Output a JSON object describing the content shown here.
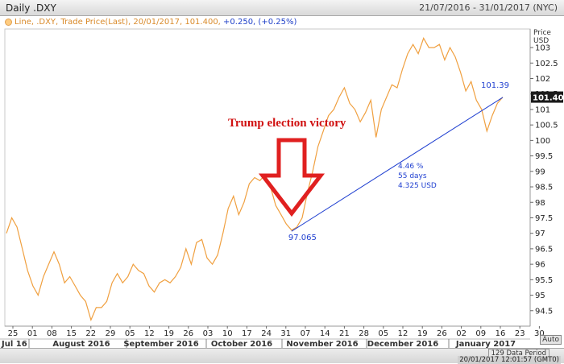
{
  "window": {
    "title": "Daily .DXY",
    "date_range": "21/07/2016 - 31/01/2017 (NYC)"
  },
  "legend": {
    "text": "Line, .DXY, Trade Price(Last), 20/01/2017, 101.400, ",
    "change": "+0.250, (+0.25%)",
    "color": "#f0a040"
  },
  "footer": {
    "period": "129 Data Period",
    "timestamp": "20/01/2017 12:01:57 (GMT0)",
    "auto_button": "Auto"
  },
  "colors": {
    "line": "#f0a040",
    "trend": "#1f3fd0",
    "arrow": "#e02020",
    "annotation_text": "#d01010",
    "price_box": "#1a1a1a"
  },
  "chart_data": {
    "type": "line",
    "title": "Daily .DXY",
    "ylabel": "Price USD",
    "ylim": [
      94.0,
      103.6
    ],
    "y_ticks": [
      94.5,
      95,
      95.5,
      96,
      96.5,
      97,
      97.5,
      98,
      98.5,
      99,
      99.5,
      100,
      100.5,
      101,
      101.5,
      102,
      102.5,
      103
    ],
    "x_tick_labels": [
      "25",
      "01",
      "08",
      "15",
      "22",
      "29",
      "05",
      "12",
      "19",
      "26",
      "03",
      "10",
      "17",
      "24",
      "31",
      "07",
      "14",
      "21",
      "28",
      "05",
      "12",
      "19",
      "26",
      "02",
      "09",
      "16",
      "23",
      "30"
    ],
    "month_labels": [
      "Jul 16",
      "August 2016",
      "September 2016",
      "October 2016",
      "November 2016",
      "December 2016",
      "January 2017"
    ],
    "last_price_label": "101.400",
    "series": [
      {
        "values": [
          97.0,
          97.5,
          97.2,
          96.5,
          95.8,
          95.3,
          95.0,
          95.6,
          96.0,
          96.4,
          96.0,
          95.4,
          95.6,
          95.3,
          95.0,
          94.8,
          94.2,
          94.6,
          94.6,
          94.8,
          95.4,
          95.7,
          95.4,
          95.6,
          96.0,
          95.8,
          95.7,
          95.3,
          95.1,
          95.4,
          95.5,
          95.4,
          95.6,
          95.9,
          96.5,
          96.0,
          96.7,
          96.8,
          96.2,
          96.0,
          96.3,
          97.0,
          97.8,
          98.2,
          97.6,
          98.0,
          98.6,
          98.8,
          98.7,
          98.9,
          98.5,
          97.9,
          97.6,
          97.3,
          97.1,
          97.2,
          97.5,
          98.3,
          99.0,
          99.8,
          100.3,
          100.8,
          101.0,
          101.4,
          101.7,
          101.2,
          101.0,
          100.6,
          100.9,
          101.3,
          100.1,
          101.0,
          101.4,
          101.8,
          101.7,
          102.3,
          102.8,
          103.1,
          102.8,
          103.3,
          103.0,
          103.0,
          103.1,
          102.6,
          103.0,
          102.7,
          102.2,
          101.6,
          101.9,
          101.3,
          101.0,
          100.3,
          100.8,
          101.2,
          101.4
        ]
      }
    ],
    "annotations": [
      {
        "text": "Trump election victory"
      },
      {
        "text": "97.065",
        "value": 97.065
      },
      {
        "text": "101.39",
        "value": 101.39
      },
      {
        "text": "4.46 %"
      },
      {
        "text": "55 days"
      },
      {
        "text": "4.325 USD"
      }
    ],
    "grid": false
  }
}
